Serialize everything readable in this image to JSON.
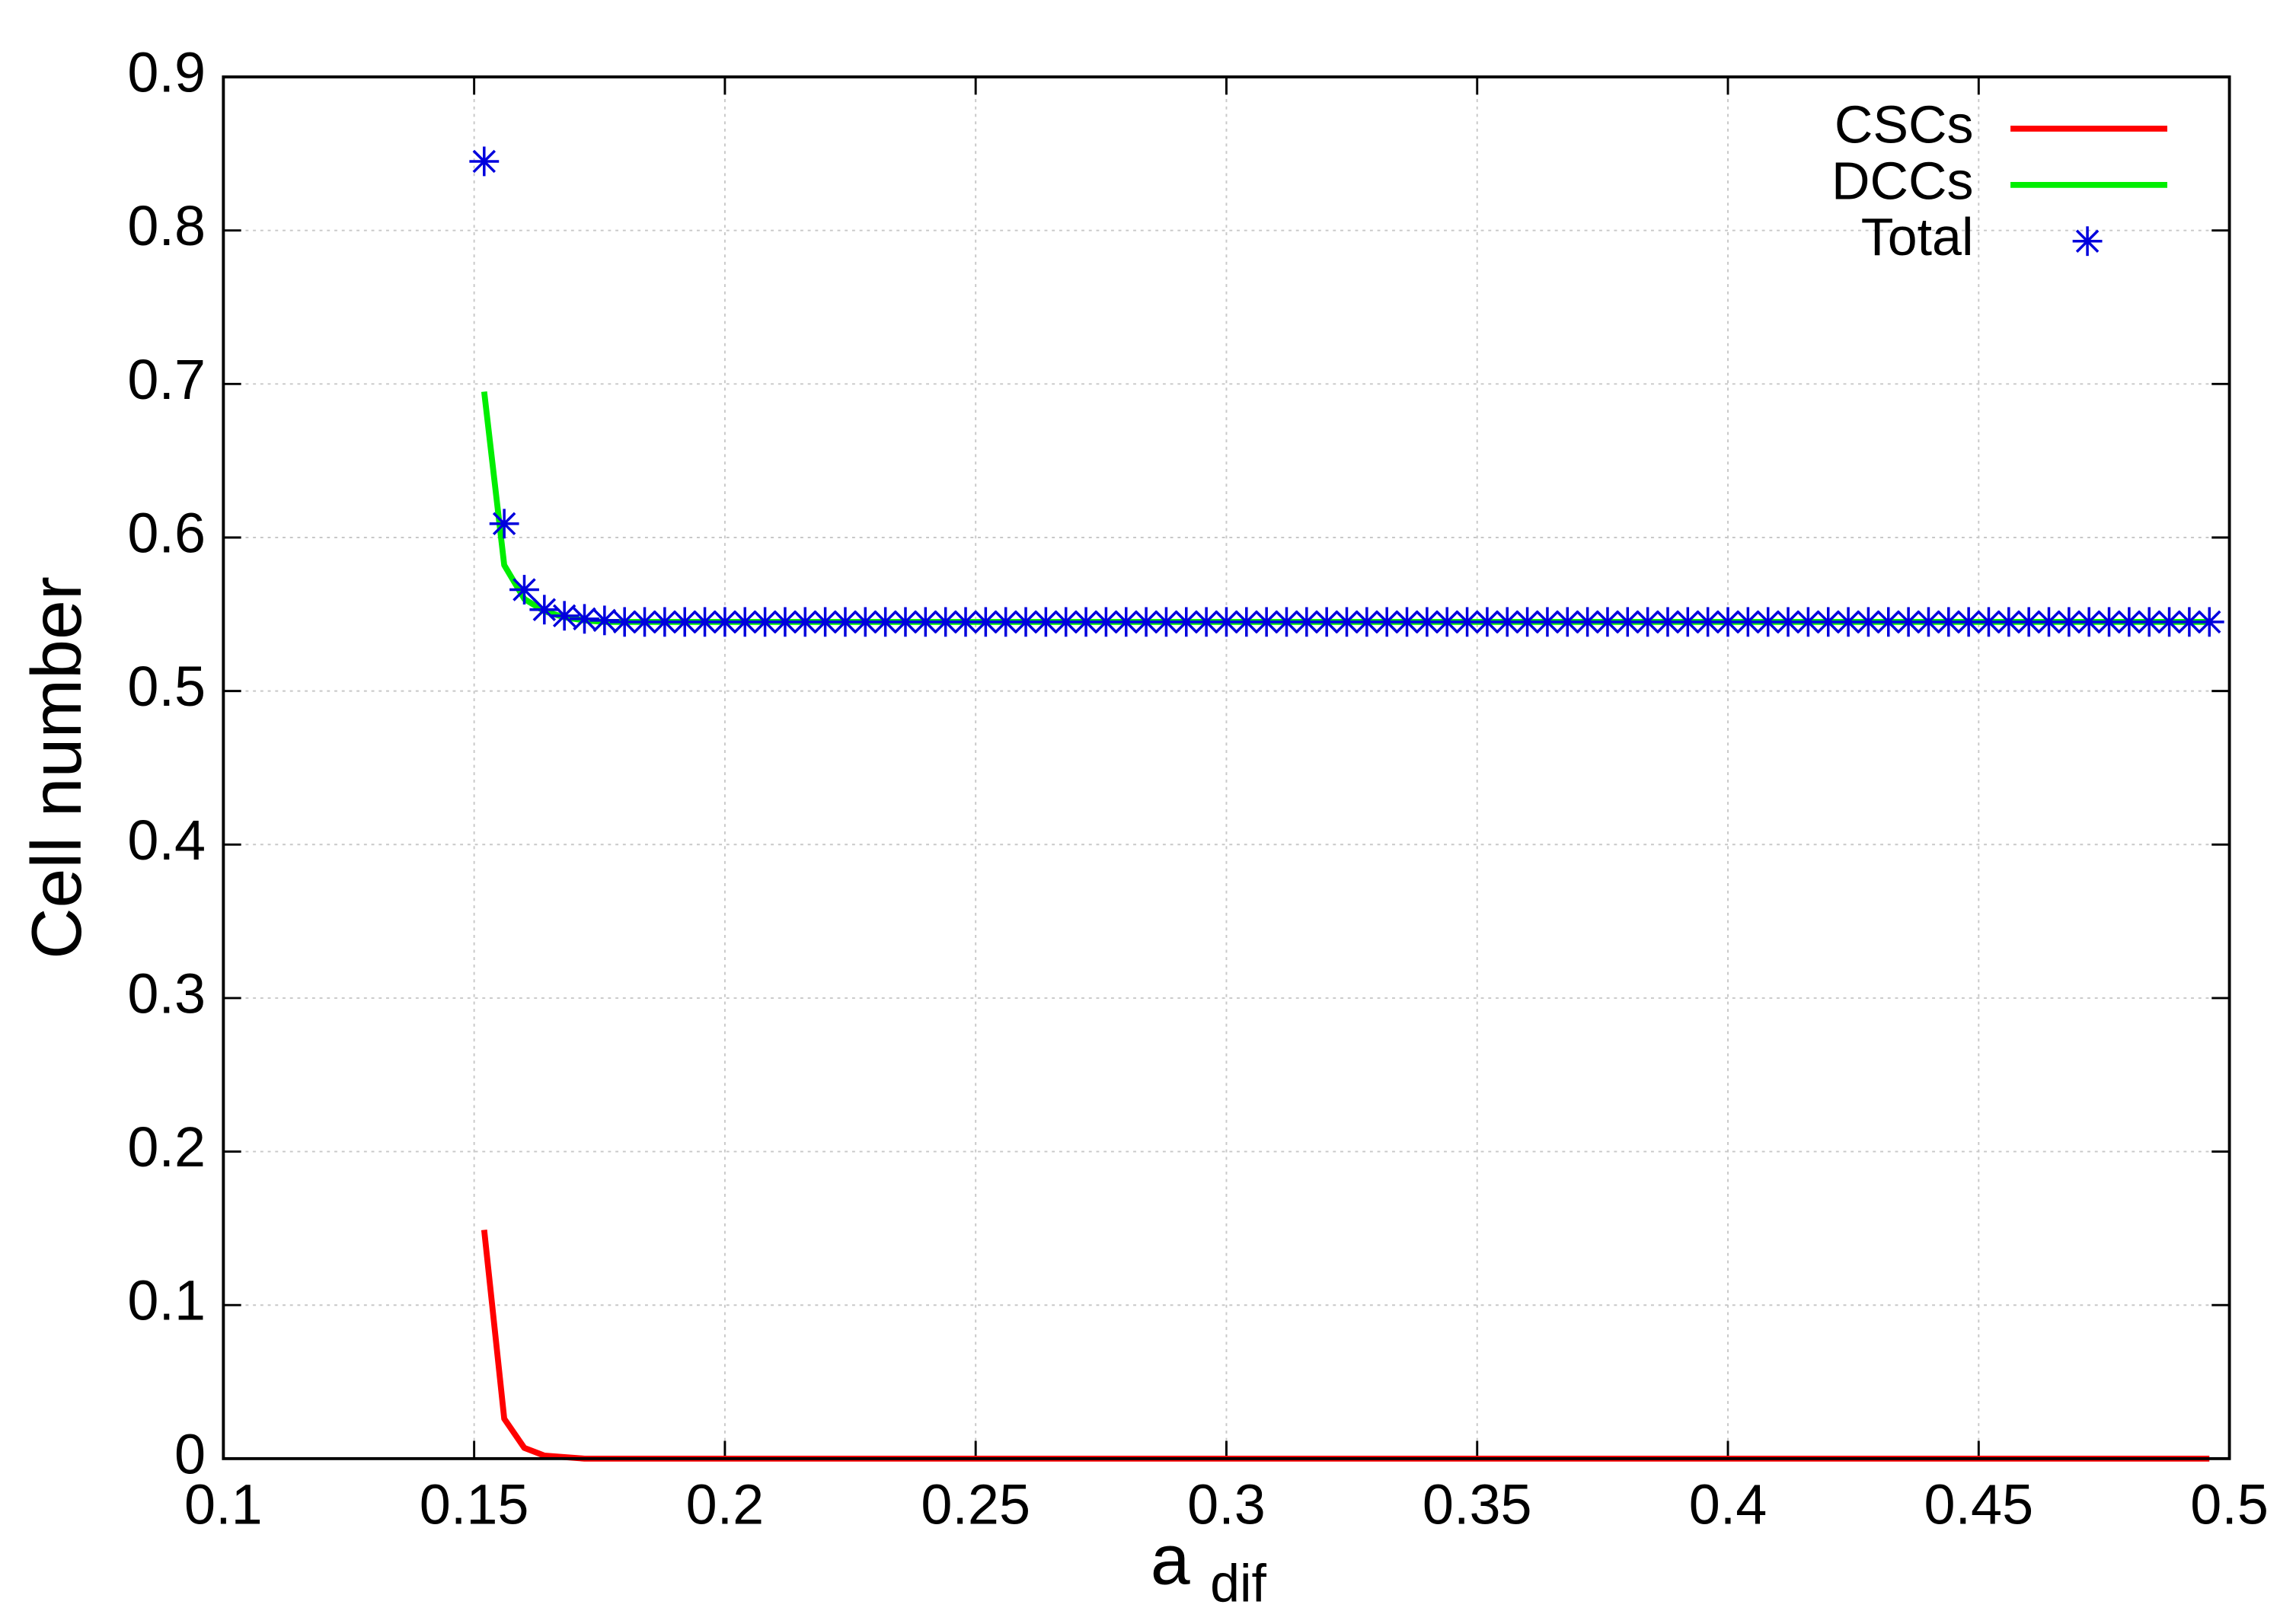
{
  "chart_data": {
    "type": "line",
    "xlabel": "a",
    "xlabel_subscript": "dif",
    "ylabel": "Cell number",
    "x": [
      0.152,
      0.156,
      0.16,
      0.164,
      0.168,
      0.172,
      0.176,
      0.18,
      0.184,
      0.188,
      0.192,
      0.196,
      0.2,
      0.204,
      0.208,
      0.212,
      0.216,
      0.22,
      0.224,
      0.228,
      0.232,
      0.236,
      0.24,
      0.244,
      0.248,
      0.252,
      0.256,
      0.26,
      0.264,
      0.268,
      0.272,
      0.276,
      0.28,
      0.284,
      0.288,
      0.292,
      0.296,
      0.3,
      0.304,
      0.308,
      0.312,
      0.316,
      0.32,
      0.324,
      0.328,
      0.332,
      0.336,
      0.34,
      0.344,
      0.348,
      0.352,
      0.356,
      0.36,
      0.364,
      0.368,
      0.372,
      0.376,
      0.38,
      0.384,
      0.388,
      0.392,
      0.396,
      0.4,
      0.404,
      0.408,
      0.412,
      0.416,
      0.42,
      0.424,
      0.428,
      0.432,
      0.436,
      0.44,
      0.444,
      0.448,
      0.452,
      0.456,
      0.46,
      0.464,
      0.468,
      0.472,
      0.476,
      0.48,
      0.484,
      0.488,
      0.492,
      0.496
    ],
    "series": [
      {
        "name": "CSCs",
        "color": "#ff0000",
        "style": "line",
        "values": [
          0.149,
          0.026,
          0.007,
          0.002,
          0.001,
          0,
          0,
          0,
          0,
          0,
          0,
          0,
          0,
          0,
          0,
          0,
          0,
          0,
          0,
          0,
          0,
          0,
          0,
          0,
          0,
          0,
          0,
          0,
          0,
          0,
          0,
          0,
          0,
          0,
          0,
          0,
          0,
          0,
          0,
          0,
          0,
          0,
          0,
          0,
          0,
          0,
          0,
          0,
          0,
          0,
          0,
          0,
          0,
          0,
          0,
          0,
          0,
          0,
          0,
          0,
          0,
          0,
          0,
          0,
          0,
          0,
          0,
          0,
          0,
          0,
          0,
          0,
          0,
          0,
          0,
          0,
          0,
          0,
          0,
          0,
          0,
          0,
          0,
          0,
          0,
          0,
          0
        ]
      },
      {
        "name": "DCCs",
        "color": "#00ee00",
        "style": "line",
        "values": [
          0.695,
          0.582,
          0.56,
          0.552,
          0.548,
          0.546,
          0.545,
          0.545,
          0.545,
          0.545,
          0.545,
          0.545,
          0.545,
          0.545,
          0.545,
          0.545,
          0.545,
          0.545,
          0.545,
          0.545,
          0.545,
          0.545,
          0.545,
          0.545,
          0.545,
          0.545,
          0.545,
          0.545,
          0.545,
          0.545,
          0.545,
          0.545,
          0.545,
          0.545,
          0.545,
          0.545,
          0.545,
          0.545,
          0.545,
          0.545,
          0.545,
          0.545,
          0.545,
          0.545,
          0.545,
          0.545,
          0.545,
          0.545,
          0.545,
          0.545,
          0.545,
          0.545,
          0.545,
          0.545,
          0.545,
          0.545,
          0.545,
          0.545,
          0.545,
          0.545,
          0.545,
          0.545,
          0.545,
          0.545,
          0.545,
          0.545,
          0.545,
          0.545,
          0.545,
          0.545,
          0.545,
          0.545,
          0.545,
          0.545,
          0.545,
          0.545,
          0.545,
          0.545,
          0.545,
          0.545,
          0.545,
          0.545,
          0.545,
          0.545,
          0.545,
          0.545,
          0.545
        ]
      },
      {
        "name": "Total",
        "color": "#0000dd",
        "style": "marker",
        "values": [
          0.845,
          0.609,
          0.566,
          0.553,
          0.549,
          0.547,
          0.546,
          0.545,
          0.545,
          0.545,
          0.545,
          0.545,
          0.545,
          0.545,
          0.545,
          0.545,
          0.545,
          0.545,
          0.545,
          0.545,
          0.545,
          0.545,
          0.545,
          0.545,
          0.545,
          0.545,
          0.545,
          0.545,
          0.545,
          0.545,
          0.545,
          0.545,
          0.545,
          0.545,
          0.545,
          0.545,
          0.545,
          0.545,
          0.545,
          0.545,
          0.545,
          0.545,
          0.545,
          0.545,
          0.545,
          0.545,
          0.545,
          0.545,
          0.545,
          0.545,
          0.545,
          0.545,
          0.545,
          0.545,
          0.545,
          0.545,
          0.545,
          0.545,
          0.545,
          0.545,
          0.545,
          0.545,
          0.545,
          0.545,
          0.545,
          0.545,
          0.545,
          0.545,
          0.545,
          0.545,
          0.545,
          0.545,
          0.545,
          0.545,
          0.545,
          0.545,
          0.545,
          0.545,
          0.545,
          0.545,
          0.545,
          0.545,
          0.545,
          0.545,
          0.545,
          0.545,
          0.545
        ]
      }
    ],
    "xlim": [
      0.1,
      0.5
    ],
    "xticks": [
      0.1,
      0.15,
      0.2,
      0.25,
      0.3,
      0.35,
      0.4,
      0.45,
      0.5
    ],
    "ylim": [
      0,
      0.9
    ],
    "yticks": [
      0,
      0.1,
      0.2,
      0.3,
      0.4,
      0.5,
      0.6,
      0.7,
      0.8,
      0.9
    ],
    "grid": true,
    "legend": "top-right"
  }
}
